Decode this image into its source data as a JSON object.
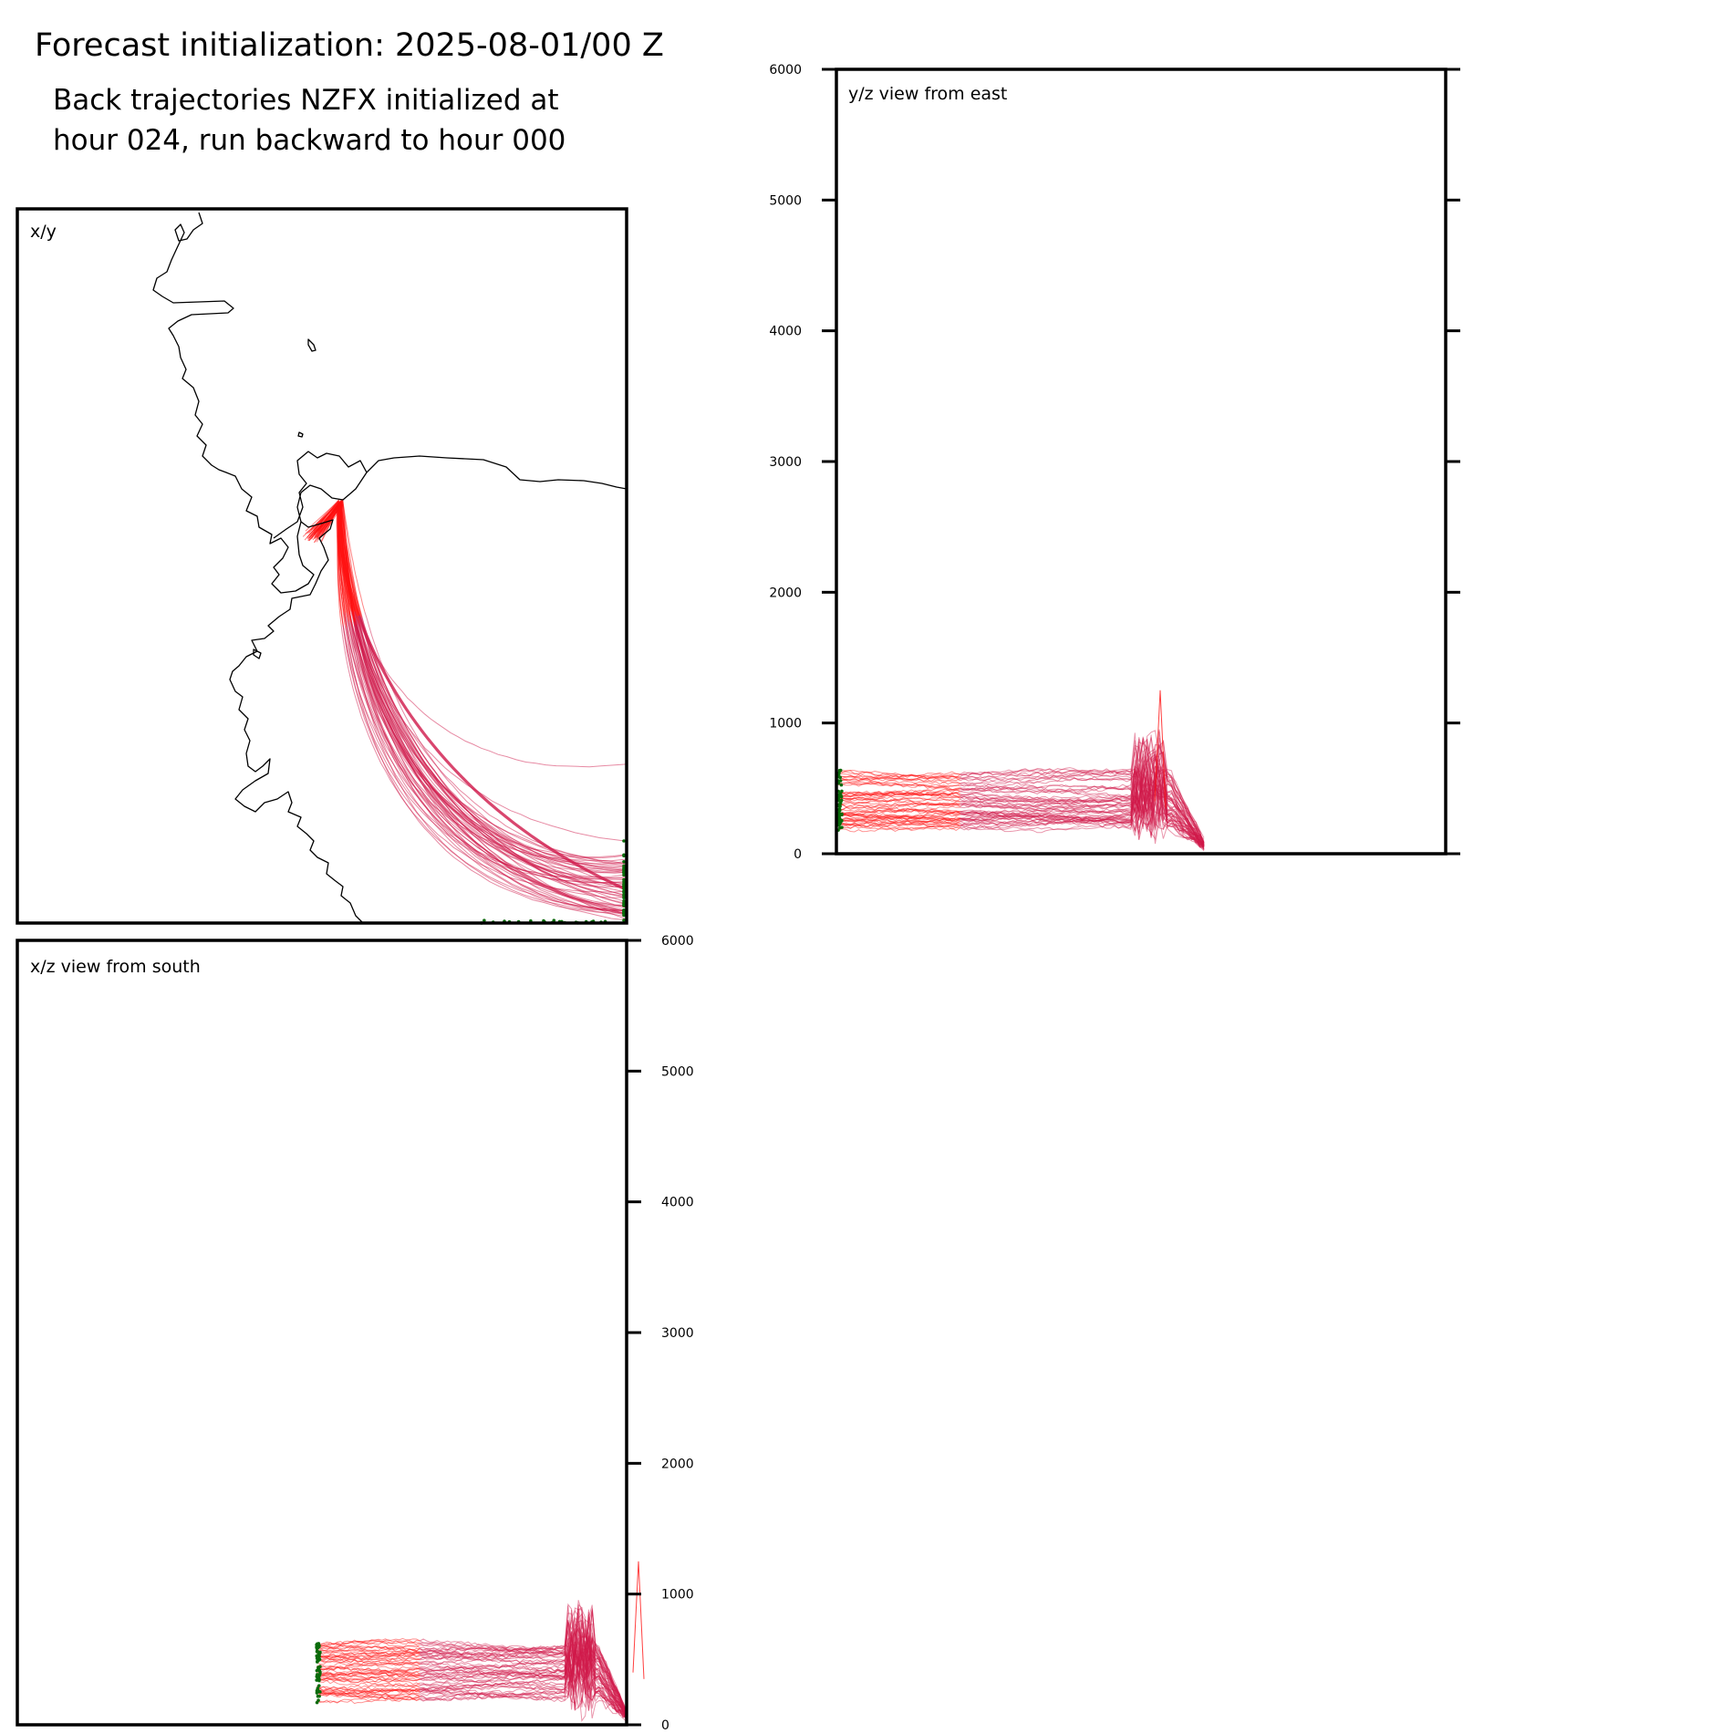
{
  "title": "Forecast initialization: 2025-08-01/00 Z",
  "subtitle": {
    "line1": "Back trajectories NZFX initialized at",
    "line2": "hour 024, run backward to hour 000"
  },
  "colors": {
    "trajectory_recent": "#ff1010",
    "trajectory_mid": "#d0184a",
    "trajectory_old": "#b0207a",
    "endpoint": "#0a6b0a",
    "coastline": "#000000"
  },
  "chart_data": [
    {
      "type": "line",
      "panel": "xy",
      "label": "x/y",
      "description_of_content": "map plan view with coastline and trajectories",
      "grid": false
    },
    {
      "type": "line",
      "panel": "yz",
      "label": "y/z view from east",
      "ylim": [
        0,
        6000
      ],
      "yticks": [
        "0",
        "1000",
        "2000",
        "3000",
        "4000",
        "5000",
        "6000"
      ],
      "grid": false
    },
    {
      "type": "line",
      "panel": "xz",
      "label": "x/z view from south",
      "ylim": [
        0,
        6000
      ],
      "yticks": [
        "0",
        "1000",
        "2000",
        "3000",
        "4000",
        "5000",
        "6000"
      ],
      "grid": false
    }
  ]
}
